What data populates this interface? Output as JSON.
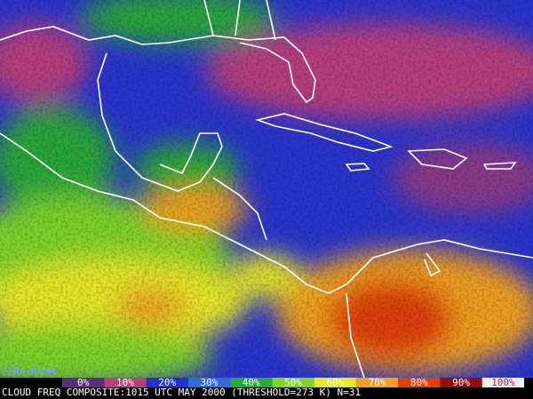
{
  "source": "CIRA/RAMM",
  "caption": "CLOUD FREQ COMPOSITE:1015 UTC MAY 2000 (THRESHOLD=273 K) N=31",
  "legend": [
    {
      "label": "0%",
      "color": "#5a2f7a"
    },
    {
      "label": "10%",
      "color": "#b8407f"
    },
    {
      "label": "20%",
      "color": "#2233c8"
    },
    {
      "label": "30%",
      "color": "#2f6cd8"
    },
    {
      "label": "40%",
      "color": "#2aa83a"
    },
    {
      "label": "50%",
      "color": "#7fd42a"
    },
    {
      "label": "60%",
      "color": "#e8e82a"
    },
    {
      "label": "70%",
      "color": "#f0a020"
    },
    {
      "label": "80%",
      "color": "#e04010"
    },
    {
      "label": "90%",
      "color": "#901010"
    },
    {
      "label": "100%",
      "color": "#f0f0f0"
    }
  ]
}
